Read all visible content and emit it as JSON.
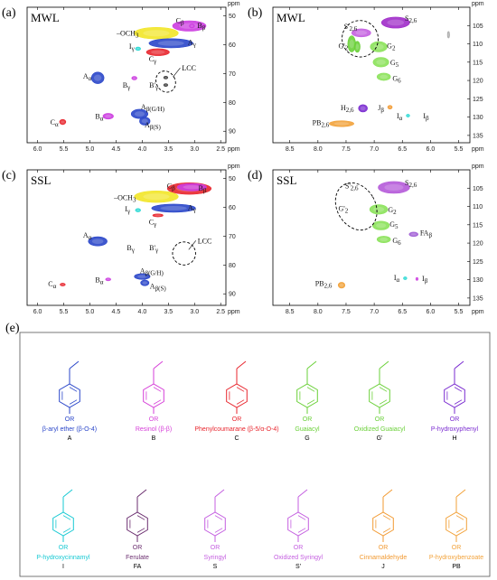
{
  "panels": [
    {
      "id": "a",
      "label": "(a)",
      "sample": "MWL",
      "xlim": [
        6.2,
        2.4
      ],
      "ylim": [
        47,
        94
      ],
      "xticks": [
        6.0,
        5.5,
        5.0,
        4.5,
        4.0,
        3.5,
        3.0,
        2.5
      ],
      "yticks": [
        50,
        60,
        70,
        80,
        90
      ],
      "unit": "ppm",
      "lcc": {
        "label": "LCC",
        "x": 3.55,
        "y": 71.5
      },
      "peaks": [
        {
          "name": "Cβ",
          "x": 3.05,
          "y": 53.5,
          "label_x": 3.28,
          "label_y": 51.5,
          "color": "#111111"
        },
        {
          "name": "Bβ",
          "x": 3.05,
          "y": 53.7,
          "label_x": 2.87,
          "label_y": 53.2,
          "color": "#111111"
        },
        {
          "name": "–OCH3",
          "x": 3.73,
          "y": 55.8,
          "label_x": 4.28,
          "label_y": 56.0,
          "color": "#111111"
        },
        {
          "name": "Aγ",
          "x": 3.35,
          "y": 60.0,
          "label_x": 3.05,
          "label_y": 59.0,
          "color": "#111111"
        },
        {
          "name": "Iγ",
          "x": 4.08,
          "y": 61.4,
          "label_x": 4.2,
          "label_y": 60.5,
          "color": "#111111"
        },
        {
          "name": "Cγ",
          "x": 3.7,
          "y": 62.6,
          "label_x": 3.8,
          "label_y": 64.8,
          "color": "#111111"
        },
        {
          "name": "Aα",
          "x": 4.85,
          "y": 71.5,
          "label_x": 5.05,
          "label_y": 70.8,
          "color": "#111111"
        },
        {
          "name": "Bγ",
          "x": 4.15,
          "y": 71.6,
          "label_x": 4.3,
          "label_y": 74.0,
          "color": "#111111"
        },
        {
          "name": "B'γ",
          "x": 3.55,
          "y": 71.4,
          "label_x": 3.78,
          "label_y": 74.0,
          "color": "#111111"
        },
        {
          "name": "Aβ(G/H)",
          "x": 4.05,
          "y": 84.0,
          "label_x": 3.8,
          "label_y": 81.5,
          "color": "#111111"
        },
        {
          "name": "Bα",
          "x": 4.65,
          "y": 84.8,
          "label_x": 4.82,
          "label_y": 84.8,
          "color": "#111111"
        },
        {
          "name": "Aβ(S)",
          "x": 3.95,
          "y": 86.2,
          "label_x": 3.8,
          "label_y": 87.8,
          "color": "#111111"
        },
        {
          "name": "Cα",
          "x": 5.52,
          "y": 86.8,
          "label_x": 5.68,
          "label_y": 86.8,
          "color": "#111111"
        }
      ]
    },
    {
      "id": "b",
      "label": "(b)",
      "sample": "MWL",
      "xlim": [
        8.8,
        5.3
      ],
      "ylim": [
        100,
        137
      ],
      "xticks": [
        8.5,
        8.0,
        7.5,
        7.0,
        6.5,
        6.0,
        5.5
      ],
      "yticks": [
        105,
        110,
        115,
        120,
        125,
        130,
        135
      ],
      "unit": "ppm",
      "peaks": [
        {
          "name": "S2,6",
          "x": 6.62,
          "y": 104.2,
          "label_x": 6.35,
          "label_y": 103.0,
          "color": "#111111"
        },
        {
          "name": "S'2,6",
          "x": 7.23,
          "y": 106.8,
          "label_x": 7.42,
          "label_y": 105.2,
          "color": "#111111"
        },
        {
          "name": "G'2",
          "x": 7.38,
          "y": 110.8,
          "label_x": 7.55,
          "label_y": 110.5,
          "color": "#111111"
        },
        {
          "name": "G2",
          "x": 6.92,
          "y": 110.8,
          "label_x": 6.7,
          "label_y": 110.5,
          "color": "#111111"
        },
        {
          "name": "G5",
          "x": 6.88,
          "y": 115.0,
          "label_x": 6.64,
          "label_y": 115.0,
          "color": "#111111"
        },
        {
          "name": "G6",
          "x": 6.83,
          "y": 119.0,
          "label_x": 6.6,
          "label_y": 119.4,
          "color": "#111111"
        },
        {
          "name": "H2,6",
          "x": 7.2,
          "y": 127.6,
          "label_x": 7.48,
          "label_y": 127.4,
          "color": "#111111"
        },
        {
          "name": "Jβ",
          "x": 6.72,
          "y": 127.3,
          "label_x": 6.88,
          "label_y": 127.4,
          "color": "#111111"
        },
        {
          "name": "Iα",
          "x": 6.4,
          "y": 129.6,
          "label_x": 6.55,
          "label_y": 129.6,
          "color": "#111111"
        },
        {
          "name": "Iβ",
          "x": 6.22,
          "y": 129.6,
          "label_x": 6.08,
          "label_y": 129.6,
          "color": "#111111"
        },
        {
          "name": "PB2,6",
          "x": 7.58,
          "y": 131.8,
          "label_x": 7.95,
          "label_y": 131.4,
          "color": "#111111"
        }
      ]
    },
    {
      "id": "c",
      "label": "(c)",
      "sample": "SSL",
      "xlim": [
        6.2,
        2.4
      ],
      "ylim": [
        47,
        94
      ],
      "xticks": [
        6.0,
        5.5,
        5.0,
        4.5,
        4.0,
        3.5,
        3.0,
        2.5
      ],
      "yticks": [
        50,
        60,
        70,
        80,
        90
      ],
      "unit": "ppm",
      "lcc": {
        "label": "LCC",
        "x": 3.25,
        "y": 75.0
      },
      "peaks": [
        {
          "name": "Cβ",
          "x": 3.1,
          "y": 53.5,
          "label_x": 3.45,
          "label_y": 52.5,
          "color": "#111111"
        },
        {
          "name": "Bβ",
          "x": 3.05,
          "y": 53.7,
          "label_x": 2.85,
          "label_y": 53.2,
          "color": "#111111"
        },
        {
          "name": "–OCH3",
          "x": 3.73,
          "y": 55.8,
          "label_x": 4.33,
          "label_y": 56.5,
          "color": "#111111"
        },
        {
          "name": "Iγ",
          "x": 4.08,
          "y": 61.0,
          "label_x": 4.28,
          "label_y": 60.5,
          "color": "#111111"
        },
        {
          "name": "Aγ",
          "x": 3.35,
          "y": 60.4,
          "label_x": 3.05,
          "label_y": 60.0,
          "color": "#111111"
        },
        {
          "name": "Cγ",
          "x": 3.7,
          "y": 62.8,
          "label_x": 3.8,
          "label_y": 65.0,
          "color": "#111111"
        },
        {
          "name": "Aα",
          "x": 4.85,
          "y": 71.8,
          "label_x": 5.05,
          "label_y": 69.5,
          "color": "#111111"
        },
        {
          "name": "Bγ",
          "x": 4.15,
          "y": 71.8,
          "label_x": 4.22,
          "label_y": 74.0,
          "color": "#111111"
        },
        {
          "name": "B'γ",
          "x": 3.55,
          "y": 71.8,
          "label_x": 3.78,
          "label_y": 74.0,
          "color": "#111111"
        },
        {
          "name": "Aβ(G/H)",
          "x": 4.0,
          "y": 84.0,
          "label_x": 3.82,
          "label_y": 82.0,
          "color": "#111111"
        },
        {
          "name": "Bα",
          "x": 4.65,
          "y": 85.0,
          "label_x": 4.82,
          "label_y": 85.0,
          "color": "#111111"
        },
        {
          "name": "Aβ(S)",
          "x": 3.95,
          "y": 86.2,
          "label_x": 3.7,
          "label_y": 87.2,
          "color": "#111111"
        },
        {
          "name": "Cα",
          "x": 5.52,
          "y": 86.8,
          "label_x": 5.72,
          "label_y": 86.5,
          "color": "#111111"
        }
      ]
    },
    {
      "id": "d",
      "label": "(d)",
      "sample": "SSL",
      "xlim": [
        8.8,
        5.3
      ],
      "ylim": [
        100,
        137
      ],
      "xticks": [
        8.5,
        8.0,
        7.5,
        7.0,
        6.5,
        6.0,
        5.5
      ],
      "yticks": [
        105,
        110,
        115,
        120,
        125,
        130,
        135
      ],
      "unit": "ppm",
      "peaks": [
        {
          "name": "S2,6",
          "x": 6.65,
          "y": 104.8,
          "label_x": 6.35,
          "label_y": 103.5,
          "color": "#111111"
        },
        {
          "name": "S'2,6",
          "x": 7.28,
          "y": 106.0,
          "label_x": 7.4,
          "label_y": 104.3,
          "color": "#111111"
        },
        {
          "name": "G'2",
          "x": 7.3,
          "y": 110.8,
          "label_x": 7.55,
          "label_y": 110.5,
          "color": "#111111"
        },
        {
          "name": "G2",
          "x": 6.92,
          "y": 110.8,
          "label_x": 6.68,
          "label_y": 110.8,
          "color": "#111111"
        },
        {
          "name": "G5",
          "x": 6.88,
          "y": 115.2,
          "label_x": 6.65,
          "label_y": 114.8,
          "color": "#111111"
        },
        {
          "name": "FAβ",
          "x": 6.3,
          "y": 117.6,
          "label_x": 6.08,
          "label_y": 117.2,
          "color": "#111111"
        },
        {
          "name": "G6",
          "x": 6.83,
          "y": 119.0,
          "label_x": 6.6,
          "label_y": 119.3,
          "color": "#111111"
        },
        {
          "name": "Iα",
          "x": 6.45,
          "y": 129.6,
          "label_x": 6.6,
          "label_y": 129.3,
          "color": "#111111"
        },
        {
          "name": "Iβ",
          "x": 6.24,
          "y": 129.6,
          "label_x": 6.1,
          "label_y": 129.6,
          "color": "#111111"
        },
        {
          "name": "PB2,6",
          "x": 7.58,
          "y": 131.5,
          "label_x": 7.9,
          "label_y": 131.0,
          "color": "#111111"
        }
      ]
    }
  ],
  "blobs": {
    "a": [
      {
        "x": 3.1,
        "y": 53.5,
        "rx": 0.32,
        "ry": 1.8,
        "color": "#cc3de0"
      },
      {
        "x": 3.73,
        "y": 56.0,
        "rx": 0.42,
        "ry": 2.0,
        "color": "#f2e628"
      },
      {
        "x": 3.45,
        "y": 59.5,
        "rx": 0.42,
        "ry": 1.6,
        "color": "#2a46c9"
      },
      {
        "x": 3.7,
        "y": 62.6,
        "rx": 0.22,
        "ry": 1.2,
        "color": "#e8262e"
      },
      {
        "x": 4.08,
        "y": 61.4,
        "rx": 0.05,
        "ry": 0.6,
        "color": "#29d9d4"
      },
      {
        "x": 4.85,
        "y": 71.5,
        "rx": 0.12,
        "ry": 2.0,
        "color": "#2a46c9"
      },
      {
        "x": 4.15,
        "y": 71.6,
        "rx": 0.05,
        "ry": 0.6,
        "color": "#cc3de0"
      },
      {
        "x": 3.55,
        "y": 71.4,
        "rx": 0.04,
        "ry": 0.5,
        "color": "#444444"
      },
      {
        "x": 3.55,
        "y": 74.0,
        "rx": 0.04,
        "ry": 0.5,
        "color": "#444444"
      },
      {
        "x": 4.05,
        "y": 84.0,
        "rx": 0.16,
        "ry": 1.6,
        "color": "#2a46c9"
      },
      {
        "x": 3.95,
        "y": 86.5,
        "rx": 0.1,
        "ry": 1.4,
        "color": "#2a46c9"
      },
      {
        "x": 4.65,
        "y": 84.8,
        "rx": 0.1,
        "ry": 1.0,
        "color": "#cc3de0"
      },
      {
        "x": 5.52,
        "y": 86.8,
        "rx": 0.06,
        "ry": 0.9,
        "color": "#e8262e"
      },
      {
        "x": 3.05,
        "y": 53.5,
        "rx": 0.05,
        "ry": 0.7,
        "color": "#cc3de0"
      }
    ],
    "b": [
      {
        "x": 6.62,
        "y": 104.2,
        "rx": 0.25,
        "ry": 1.5,
        "color": "#a02cc9"
      },
      {
        "x": 7.23,
        "y": 107.0,
        "rx": 0.17,
        "ry": 1.1,
        "color": "#c45fe0"
      },
      {
        "x": 7.4,
        "y": 110.0,
        "rx": 0.07,
        "ry": 2.2,
        "color": "#6ad038"
      },
      {
        "x": 7.3,
        "y": 110.8,
        "rx": 0.05,
        "ry": 1.5,
        "color": "#6ad038"
      },
      {
        "x": 6.92,
        "y": 110.8,
        "rx": 0.15,
        "ry": 1.4,
        "color": "#8be25a"
      },
      {
        "x": 6.88,
        "y": 115.0,
        "rx": 0.14,
        "ry": 1.3,
        "color": "#8be25a"
      },
      {
        "x": 6.83,
        "y": 119.0,
        "rx": 0.12,
        "ry": 1.0,
        "color": "#8be25a"
      },
      {
        "x": 7.2,
        "y": 127.6,
        "rx": 0.08,
        "ry": 1.0,
        "color": "#7a2bd0"
      },
      {
        "x": 6.72,
        "y": 127.3,
        "rx": 0.04,
        "ry": 0.5,
        "color": "#f29a32"
      },
      {
        "x": 6.4,
        "y": 129.6,
        "rx": 0.03,
        "ry": 0.4,
        "color": "#29d9d4"
      },
      {
        "x": 7.58,
        "y": 131.8,
        "rx": 0.22,
        "ry": 0.8,
        "color": "#f2a23a"
      },
      {
        "x": 5.68,
        "y": 107.5,
        "rx": 0.02,
        "ry": 0.9,
        "color": "#aaaaaa"
      }
    ],
    "c": [
      {
        "x": 3.1,
        "y": 53.5,
        "rx": 0.42,
        "ry": 2.0,
        "color": "#e8262e"
      },
      {
        "x": 3.05,
        "y": 53.0,
        "rx": 0.28,
        "ry": 1.3,
        "color": "#cc3de0"
      },
      {
        "x": 3.73,
        "y": 56.3,
        "rx": 0.42,
        "ry": 2.0,
        "color": "#f2e628"
      },
      {
        "x": 3.4,
        "y": 60.3,
        "rx": 0.42,
        "ry": 1.4,
        "color": "#2a46c9"
      },
      {
        "x": 3.7,
        "y": 62.8,
        "rx": 0.1,
        "ry": 0.5,
        "color": "#e8262e"
      },
      {
        "x": 4.08,
        "y": 61.0,
        "rx": 0.05,
        "ry": 0.6,
        "color": "#29d9d4"
      },
      {
        "x": 4.85,
        "y": 71.8,
        "rx": 0.18,
        "ry": 1.6,
        "color": "#2a46c9"
      },
      {
        "x": 4.0,
        "y": 84.0,
        "rx": 0.15,
        "ry": 1.0,
        "color": "#2a46c9"
      },
      {
        "x": 3.95,
        "y": 86.2,
        "rx": 0.08,
        "ry": 1.0,
        "color": "#2a46c9"
      },
      {
        "x": 4.65,
        "y": 85.0,
        "rx": 0.05,
        "ry": 0.5,
        "color": "#cc3de0"
      },
      {
        "x": 5.52,
        "y": 86.8,
        "rx": 0.05,
        "ry": 0.5,
        "color": "#e8262e"
      }
    ],
    "d": [
      {
        "x": 6.65,
        "y": 104.8,
        "rx": 0.28,
        "ry": 1.6,
        "color": "#b55ad9"
      },
      {
        "x": 6.92,
        "y": 110.8,
        "rx": 0.16,
        "ry": 1.3,
        "color": "#8be25a"
      },
      {
        "x": 6.88,
        "y": 115.2,
        "rx": 0.15,
        "ry": 1.2,
        "color": "#8be25a"
      },
      {
        "x": 6.83,
        "y": 119.0,
        "rx": 0.12,
        "ry": 0.9,
        "color": "#8be25a"
      },
      {
        "x": 6.3,
        "y": 117.6,
        "rx": 0.08,
        "ry": 0.6,
        "color": "#a260d6"
      },
      {
        "x": 6.45,
        "y": 129.6,
        "rx": 0.03,
        "ry": 0.4,
        "color": "#29d9d4"
      },
      {
        "x": 6.24,
        "y": 129.8,
        "rx": 0.02,
        "ry": 0.4,
        "color": "#cc3de0"
      },
      {
        "x": 7.58,
        "y": 131.5,
        "rx": 0.06,
        "ry": 0.8,
        "color": "#f2a23a"
      }
    ]
  },
  "rings": {
    "a": [
      {
        "x": 3.55,
        "y": 72.8,
        "rx": 0.18,
        "ry": 3.8
      }
    ],
    "b": [
      {
        "x": 7.25,
        "y": 108.6,
        "rx": 0.32,
        "ry": 5.0
      }
    ],
    "c": [
      {
        "x": 3.2,
        "y": 76.0,
        "rx": 0.22,
        "ry": 4.0
      }
    ],
    "d": [
      {
        "x": 7.32,
        "y": 110.0,
        "rx": 0.34,
        "ry": 6.8
      }
    ]
  },
  "structures": {
    "label": "(e)",
    "items": [
      {
        "name": "β-aryl ether (β-O-4)",
        "code": "A",
        "color": "#2a46c9"
      },
      {
        "name": "Resinol (β-β)",
        "code": "B",
        "color": "#d63fd8"
      },
      {
        "name": "Phenylcoumarane (β-5/α-O-4)",
        "code": "C",
        "color": "#e8262e"
      },
      {
        "name": "Guaiacyl",
        "code": "G",
        "color": "#6ad038"
      },
      {
        "name": "Oxidized Guaiacyl",
        "code": "G'",
        "color": "#6ad038"
      },
      {
        "name": "P-hydroxyphenyl",
        "code": "H",
        "color": "#7a2bd0"
      },
      {
        "name": "P-hydroxycinnamyl",
        "code": "I",
        "color": "#17c9d3"
      },
      {
        "name": "Ferulate",
        "code": "FA",
        "color": "#6b2e6f"
      },
      {
        "name": "Syringyl",
        "code": "S",
        "color": "#c45fe0"
      },
      {
        "name": "Oxidized Syringyl",
        "code": "S'",
        "color": "#c45fe0"
      },
      {
        "name": "Cinnamaldehyde",
        "code": "J",
        "color": "#f29a32"
      },
      {
        "name": "P-hydroxybenzoate",
        "code": "PB",
        "color": "#f2a23a"
      }
    ]
  }
}
